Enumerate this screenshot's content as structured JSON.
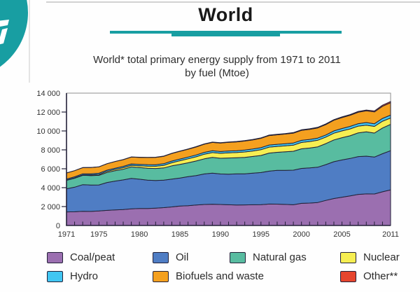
{
  "page": {
    "title": "World",
    "subtitle_line1": "World* total primary energy supply from 1971 to 2011",
    "subtitle_line2": "by fuel (Mtoe)",
    "accent_color": "#189EA2",
    "outline_color": "#232138"
  },
  "chart_data": {
    "type": "area",
    "stacked": true,
    "title": "World* total primary energy supply from 1971 to 2011 by fuel (Mtoe)",
    "unit": "Mtoe",
    "ylim": [
      0,
      14000
    ],
    "y_tick_step": 2000,
    "y_tick_labels": [
      "0",
      "2 000",
      "4 000",
      "6 000",
      "8 000",
      "10 000",
      "12 000",
      "14 000"
    ],
    "x_tick_labels": [
      "1971",
      "1975",
      "1980",
      "1985",
      "1990",
      "1995",
      "2000",
      "2005",
      "2011"
    ],
    "x_tick_years": [
      1971,
      1975,
      1980,
      1985,
      1990,
      1995,
      2000,
      2005,
      2011
    ],
    "x": [
      1971,
      1972,
      1973,
      1974,
      1975,
      1976,
      1977,
      1978,
      1979,
      1980,
      1981,
      1982,
      1983,
      1984,
      1985,
      1986,
      1987,
      1988,
      1989,
      1990,
      1991,
      1992,
      1993,
      1994,
      1995,
      1996,
      1997,
      1998,
      1999,
      2000,
      2001,
      2002,
      2003,
      2004,
      2005,
      2006,
      2007,
      2008,
      2009,
      2010,
      2011
    ],
    "series": [
      {
        "name": "Coal/peat",
        "color": "#9B6FB0",
        "values": [
          1440,
          1450,
          1500,
          1490,
          1530,
          1600,
          1650,
          1690,
          1760,
          1790,
          1800,
          1840,
          1890,
          1960,
          2060,
          2090,
          2160,
          2220,
          2250,
          2220,
          2190,
          2170,
          2180,
          2190,
          2210,
          2270,
          2260,
          2230,
          2190,
          2340,
          2370,
          2430,
          2650,
          2850,
          2990,
          3130,
          3290,
          3340,
          3330,
          3560,
          3770
        ]
      },
      {
        "name": "Oil",
        "color": "#4F7DC4",
        "values": [
          2440,
          2600,
          2820,
          2790,
          2760,
          2950,
          3050,
          3130,
          3220,
          3110,
          3000,
          2920,
          2900,
          2950,
          2960,
          3070,
          3120,
          3230,
          3280,
          3230,
          3240,
          3290,
          3280,
          3350,
          3390,
          3480,
          3570,
          3610,
          3660,
          3700,
          3720,
          3730,
          3790,
          3900,
          3940,
          3960,
          4000,
          3990,
          3910,
          4030,
          4140
        ]
      },
      {
        "name": "Natural gas",
        "color": "#58BCA0",
        "values": [
          900,
          950,
          980,
          1000,
          1010,
          1060,
          1090,
          1130,
          1210,
          1230,
          1260,
          1270,
          1300,
          1400,
          1440,
          1470,
          1540,
          1600,
          1680,
          1660,
          1710,
          1710,
          1750,
          1760,
          1810,
          1910,
          1910,
          1950,
          2000,
          2070,
          2100,
          2160,
          2220,
          2300,
          2360,
          2400,
          2510,
          2570,
          2540,
          2720,
          2790
        ]
      },
      {
        "name": "Nuclear",
        "color": "#F6EE52",
        "values": [
          29,
          40,
          53,
          70,
          100,
          115,
          140,
          160,
          170,
          186,
          220,
          240,
          270,
          330,
          390,
          420,
          450,
          490,
          500,
          526,
          545,
          550,
          570,
          580,
          608,
          630,
          620,
          630,
          650,
          675,
          690,
          694,
          687,
          714,
          721,
          728,
          709,
          712,
          703,
          719,
          674
        ]
      },
      {
        "name": "Hydro",
        "color": "#41C6F2",
        "values": [
          104,
          108,
          110,
          120,
          124,
          125,
          130,
          140,
          148,
          150,
          155,
          160,
          170,
          175,
          180,
          184,
          187,
          192,
          193,
          184,
          193,
          193,
          203,
          207,
          215,
          222,
          224,
          226,
          229,
          225,
          224,
          227,
          227,
          242,
          251,
          261,
          265,
          276,
          280,
          296,
          302
        ]
      },
      {
        "name": "Biofuels and waste",
        "color": "#F4A01F",
        "values": [
          640,
          650,
          655,
          665,
          675,
          685,
          700,
          715,
          730,
          745,
          760,
          775,
          790,
          805,
          820,
          835,
          850,
          865,
          885,
          905,
          920,
          935,
          950,
          970,
          990,
          1000,
          1010,
          1025,
          1040,
          1055,
          1065,
          1080,
          1100,
          1125,
          1150,
          1175,
          1205,
          1235,
          1255,
          1285,
          1310
        ]
      },
      {
        "name": "Other**",
        "color": "#E6452E",
        "values": [
          4,
          5,
          6,
          7,
          8,
          9,
          10,
          11,
          12,
          13,
          15,
          17,
          19,
          22,
          25,
          28,
          31,
          34,
          36,
          37,
          39,
          41,
          43,
          44,
          46,
          48,
          51,
          54,
          57,
          60,
          63,
          66,
          69,
          72,
          76,
          81,
          87,
          94,
          101,
          115,
          131
        ]
      }
    ],
    "legend_position": "bottom"
  },
  "legend": {
    "items": [
      {
        "label": "Coal/peat",
        "color": "#9B6FB0"
      },
      {
        "label": "Oil",
        "color": "#4F7DC4"
      },
      {
        "label": "Natural gas",
        "color": "#58BCA0"
      },
      {
        "label": "Nuclear",
        "color": "#F6EE52"
      },
      {
        "label": "Hydro",
        "color": "#41C6F2"
      },
      {
        "label": "Biofuels and waste",
        "color": "#F4A01F"
      },
      {
        "label": "Other**",
        "color": "#E6452E"
      }
    ]
  }
}
